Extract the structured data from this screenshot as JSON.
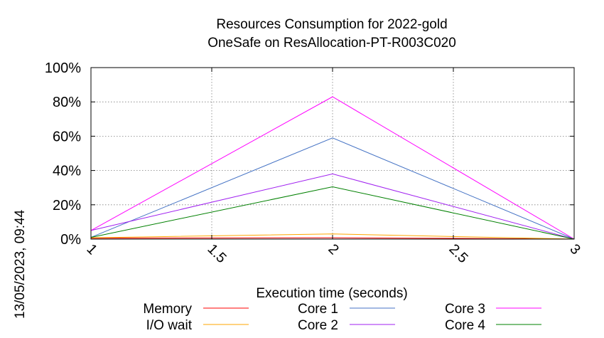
{
  "side_label": "13/05/2023, 09:44",
  "chart_data": {
    "type": "line",
    "title": [
      "Resources Consumption for 2022-gold",
      "OneSafe on ResAllocation-PT-R003C020"
    ],
    "xlabel": "Execution time (seconds)",
    "ylabel": "",
    "xlim": [
      1,
      3
    ],
    "ylim": [
      0,
      100
    ],
    "x_ticks": [
      "1",
      "1.5",
      "2",
      "2.5",
      "3"
    ],
    "x_tick_values": [
      1,
      1.5,
      2,
      2.5,
      3
    ],
    "y_ticks": [
      "0%",
      "20%",
      "40%",
      "60%",
      "80%",
      "100%"
    ],
    "y_tick_values": [
      0,
      20,
      40,
      60,
      80,
      100
    ],
    "grid": true,
    "legend_position": "bottom",
    "x": [
      1,
      2,
      3
    ],
    "series": [
      {
        "name": "Memory",
        "color": "#ff0000",
        "values": [
          0.5,
          0.8,
          0
        ]
      },
      {
        "name": "I/O wait",
        "color": "#ffa500",
        "values": [
          0.8,
          3,
          0
        ]
      },
      {
        "name": "Core 1",
        "color": "#4472c4",
        "values": [
          1,
          59,
          0
        ]
      },
      {
        "name": "Core 2",
        "color": "#a020f0",
        "values": [
          5,
          38,
          0
        ]
      },
      {
        "name": "Core 3",
        "color": "#ff00ff",
        "values": [
          5,
          83,
          0
        ]
      },
      {
        "name": "Core 4",
        "color": "#008000",
        "values": [
          1,
          30.5,
          0
        ]
      }
    ]
  }
}
